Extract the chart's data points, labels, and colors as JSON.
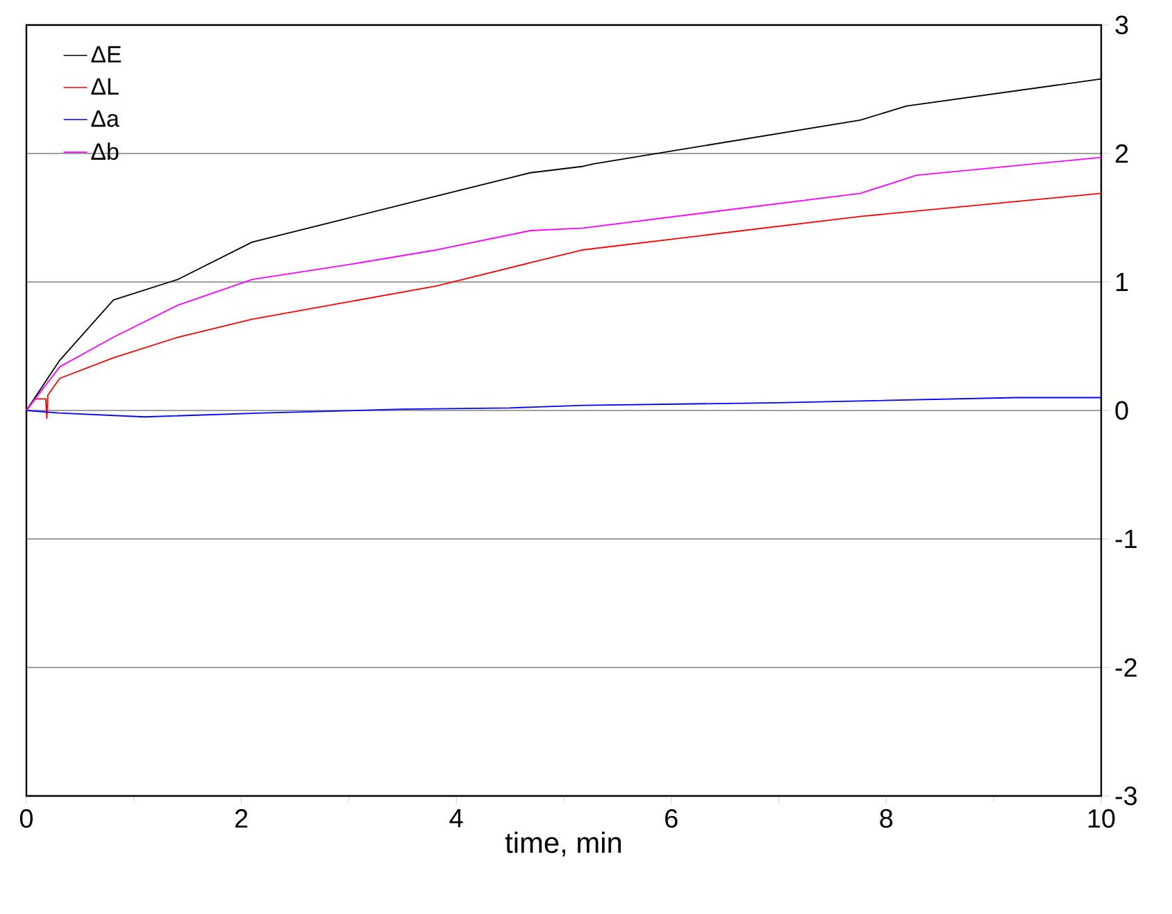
{
  "chart_data": {
    "type": "line",
    "xlabel": "time, min",
    "xlim": [
      0,
      10
    ],
    "ylim": [
      -3,
      3
    ],
    "xticks": [
      0,
      2,
      4,
      6,
      8,
      10
    ],
    "yticks": [
      -3,
      -2,
      -1,
      0,
      1,
      2,
      3
    ],
    "grid": "y",
    "legend": "top left",
    "marker": "none",
    "line_style": "solid",
    "series": [
      {
        "name": "ΔE",
        "color": "#000000",
        "x": [
          0,
          0.31,
          0.81,
          1.41,
          2.1,
          2.96,
          3.82,
          4.69,
          5.18,
          5.28,
          7.76,
          8.19,
          10
        ],
        "values": [
          0,
          0.39,
          0.86,
          1.02,
          1.31,
          1.49,
          1.67,
          1.85,
          1.9,
          1.92,
          2.26,
          2.37,
          2.58
        ]
      },
      {
        "name": "ΔL",
        "color": "#ff0000",
        "x": [
          0,
          0.08,
          0.18,
          0.19,
          0.2,
          0.31,
          0.81,
          1.41,
          2.1,
          2.96,
          3.82,
          4.69,
          5.18,
          7.76,
          10
        ],
        "values": [
          0,
          0.09,
          0.09,
          -0.06,
          0.12,
          0.25,
          0.41,
          0.57,
          0.71,
          0.84,
          0.97,
          1.15,
          1.25,
          1.51,
          1.69
        ]
      },
      {
        "name": "Δa",
        "color": "#0000ff",
        "x": [
          0,
          0.3,
          1.1,
          2.2,
          3.5,
          4.5,
          5.18,
          7,
          9.2,
          10
        ],
        "values": [
          0,
          -0.02,
          -0.05,
          -0.02,
          0.01,
          0.02,
          0.04,
          0.06,
          0.1,
          0.1
        ]
      },
      {
        "name": "Δb",
        "color": "#ff00ff",
        "x": [
          0,
          0.31,
          0.81,
          1.41,
          2.1,
          2.96,
          3.82,
          4.69,
          5.18,
          7.76,
          8.28,
          10
        ],
        "values": [
          0,
          0.34,
          0.57,
          0.82,
          1.02,
          1.13,
          1.25,
          1.4,
          1.42,
          1.69,
          1.83,
          1.97
        ]
      }
    ]
  }
}
